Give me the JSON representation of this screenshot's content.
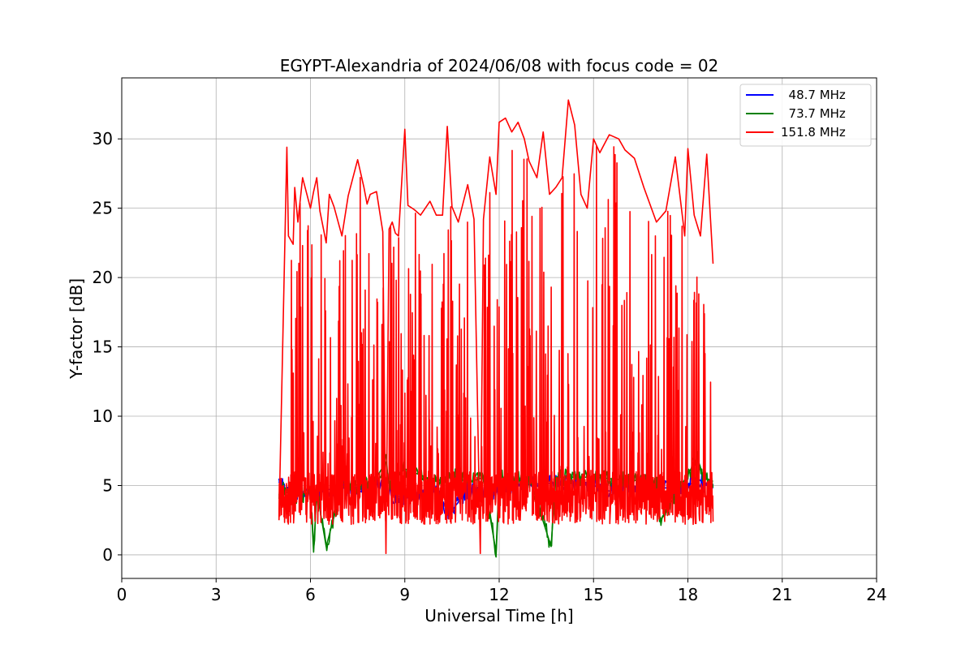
{
  "chart_data": {
    "type": "line",
    "title": "EGYPT-Alexandria of 2024/06/08 with focus code = 02",
    "xlabel": "Universal Time [h]",
    "ylabel": "Y-factor [dB]",
    "xlim": [
      0,
      24
    ],
    "ylim": [
      -1.7,
      34.4
    ],
    "xticks": [
      0,
      3,
      6,
      9,
      12,
      15,
      18,
      21,
      24
    ],
    "yticks": [
      0,
      5,
      10,
      15,
      20,
      25,
      30
    ],
    "grid": true,
    "legend_position": "upper-right",
    "colors": {
      "48.7": "#0000ff",
      "73.7": "#008000",
      "151.8": "#ff0000"
    },
    "series": [
      {
        "name": "  48.7 MHz",
        "color": "#0000ff",
        "x": [
          5.0,
          5.05,
          5.1,
          5.2,
          5.3,
          5.5,
          5.8,
          6.5,
          7.5,
          8.5,
          8.6,
          9.0,
          10.0,
          10.4,
          11.0,
          11.5,
          12.0,
          13.0,
          14.0,
          15.0,
          15.5,
          16.0,
          17.0,
          18.0,
          18.3,
          18.5,
          18.8
        ],
        "y": [
          5.5,
          4.6,
          5.3,
          4.7,
          4.9,
          4.5,
          4.4,
          4.7,
          4.9,
          5.2,
          4.3,
          4.2,
          4.9,
          2.9,
          4.7,
          4.3,
          4.8,
          5.1,
          5.2,
          5.0,
          4.6,
          5.0,
          4.8,
          4.9,
          5.6,
          5.1,
          4.8
        ]
      },
      {
        "name": "  73.7 MHz",
        "color": "#008000",
        "x": [
          5.0,
          5.1,
          5.2,
          5.3,
          5.5,
          6.0,
          6.1,
          6.2,
          6.5,
          7.0,
          8.0,
          8.4,
          8.5,
          9.0,
          10.0,
          10.5,
          11.0,
          11.5,
          11.9,
          12.0,
          13.0,
          13.65,
          13.8,
          15.0,
          16.0,
          17.0,
          17.1,
          18.0,
          18.3,
          18.5,
          18.8
        ],
        "y": [
          4.3,
          5.0,
          4.5,
          4.8,
          4.2,
          4.5,
          0.2,
          4.6,
          0.6,
          4.9,
          5.2,
          6.7,
          5.0,
          6.2,
          5.3,
          5.8,
          5.2,
          5.6,
          0.2,
          5.6,
          5.3,
          0.6,
          5.6,
          5.6,
          5.4,
          5.3,
          2.4,
          5.8,
          7.0,
          5.6,
          5.3
        ]
      },
      {
        "name": "151.8 MHz",
        "color": "#ff0000",
        "x": [
          5.0,
          5.25,
          5.3,
          5.45,
          5.5,
          5.6,
          5.75,
          6.0,
          6.1,
          6.2,
          6.3,
          6.5,
          6.6,
          6.75,
          7.0,
          7.2,
          7.5,
          7.7,
          7.8,
          7.9,
          8.1,
          8.3,
          8.4,
          8.5,
          8.6,
          8.7,
          8.8,
          9.0,
          9.1,
          9.3,
          9.5,
          9.8,
          10.0,
          10.2,
          10.35,
          10.5,
          10.7,
          11.0,
          11.2,
          11.4,
          11.5,
          11.7,
          11.9,
          12.0,
          12.2,
          12.4,
          12.6,
          12.8,
          12.95,
          13.2,
          13.4,
          13.6,
          13.8,
          14.0,
          14.2,
          14.4,
          14.6,
          14.8,
          15.0,
          15.2,
          15.5,
          15.8,
          16.0,
          16.3,
          16.6,
          17.0,
          17.3,
          17.6,
          17.9,
          18.0,
          18.2,
          18.4,
          18.6,
          18.8
        ],
        "y": [
          2.5,
          29.4,
          23.0,
          22.4,
          26.5,
          24.0,
          27.2,
          25.0,
          26.2,
          27.2,
          24.8,
          22.5,
          26.0,
          25.1,
          23.0,
          25.9,
          28.5,
          26.5,
          25.3,
          26.0,
          26.2,
          23.3,
          0.1,
          23.5,
          24.0,
          23.2,
          23.0,
          30.7,
          25.2,
          24.9,
          24.5,
          25.5,
          24.5,
          24.5,
          30.9,
          25.1,
          24.0,
          26.7,
          24.2,
          0.1,
          24.2,
          28.7,
          26.0,
          31.2,
          31.5,
          30.5,
          31.2,
          30.0,
          28.4,
          27.2,
          30.5,
          26.0,
          26.5,
          27.2,
          32.8,
          31.0,
          26.0,
          25.0,
          30.0,
          29.0,
          30.3,
          30.0,
          29.2,
          28.6,
          26.5,
          24.0,
          24.8,
          28.7,
          23.0,
          29.3,
          24.5,
          23.0,
          28.9,
          21.0
        ]
      }
    ]
  }
}
